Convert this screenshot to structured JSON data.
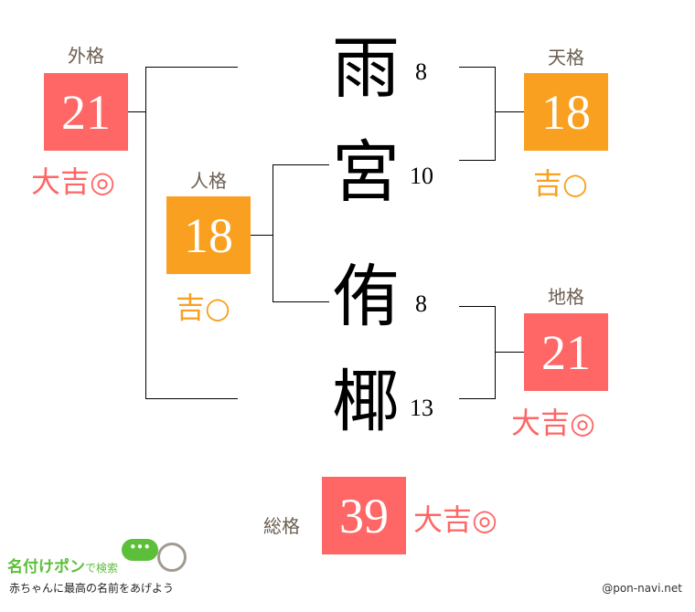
{
  "name_chars": [
    {
      "char": "雨",
      "strokes": "8"
    },
    {
      "char": "宮",
      "strokes": "10"
    },
    {
      "char": "侑",
      "strokes": "8"
    },
    {
      "char": "椰",
      "strokes": "13"
    }
  ],
  "gaikaku": {
    "label": "外格",
    "value": "21",
    "result": "大吉◎",
    "color": "#ff6666"
  },
  "jinkaku": {
    "label": "人格",
    "value": "18",
    "result": "吉○",
    "color": "#f9a020"
  },
  "tenkaku": {
    "label": "天格",
    "value": "18",
    "result": "吉○",
    "color": "#f9a020"
  },
  "chikaku": {
    "label": "地格",
    "value": "21",
    "result": "大吉◎",
    "color": "#ff6666"
  },
  "soukaku": {
    "label": "総格",
    "value": "39",
    "result": "大吉◎",
    "color": "#ff6666"
  },
  "footer": {
    "logo_title": "名付けポン",
    "logo_sub": "で検索",
    "tagline": "赤ちゃんに最高の名前をあげよう",
    "credit": "@pon-navi.net"
  }
}
